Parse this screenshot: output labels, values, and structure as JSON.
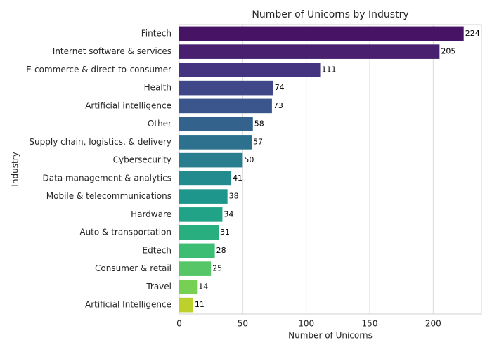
{
  "chart_data": {
    "type": "barh",
    "title": "Number of Unicorns by Industry",
    "xlabel": "Number of Unicorns",
    "ylabel": "Industry",
    "categories": [
      "Fintech",
      "Internet software & services",
      "E-commerce & direct-to-consumer",
      "Health",
      "Artificial intelligence",
      "Other",
      "Supply chain, logistics, & delivery",
      "Cybersecurity",
      "Data management & analytics",
      "Mobile & telecommunications",
      "Hardware",
      "Auto & transportation",
      "Edtech",
      "Consumer & retail",
      "Travel",
      "Artificial Intelligence"
    ],
    "values": [
      224,
      205,
      111,
      74,
      73,
      58,
      57,
      50,
      41,
      38,
      34,
      31,
      28,
      25,
      14,
      11
    ],
    "colors": [
      "#471465",
      "#48206f",
      "#453581",
      "#3f4788",
      "#3a568c",
      "#33638d",
      "#2d718e",
      "#287d8e",
      "#238a8d",
      "#1f968b",
      "#20a386",
      "#29af7f",
      "#3dbc74",
      "#56c667",
      "#75d054",
      "#bcd12c"
    ],
    "xlim": [
      0,
      238
    ],
    "xticks": [
      0,
      50,
      100,
      150,
      200
    ],
    "grid": true
  }
}
